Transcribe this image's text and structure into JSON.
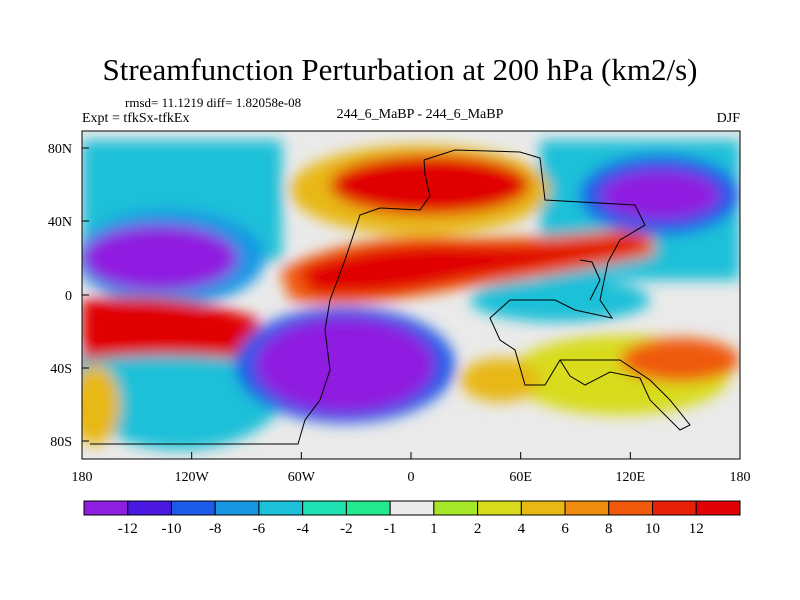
{
  "title": "Streamfunction Perturbation at 200 hPa (km2/s)",
  "stats": "rmsd= 11.1219 diff= 1.82058e-08",
  "experiment": "Expt = tfkSx-tfkEx",
  "case": "244_6_MaBP - 244_6_MaBP",
  "season": "DJF",
  "lat_ticks": [
    "80N",
    "40N",
    "0",
    "40S",
    "80S"
  ],
  "lon_ticks": [
    "180",
    "120W",
    "60W",
    "0",
    "60E",
    "120E",
    "180"
  ],
  "colorbar": {
    "labels": [
      "-12",
      "-10",
      "-8",
      "-6",
      "-4",
      "-2",
      "-1",
      "1",
      "2",
      "4",
      "6",
      "8",
      "10",
      "12"
    ],
    "colors": [
      "#8f1fe0",
      "#4a18e0",
      "#1c5ae8",
      "#1796e4",
      "#1cc0d8",
      "#1ee0b0",
      "#22e890",
      "#eaeaea",
      "#a6e628",
      "#d8dc1c",
      "#e8b814",
      "#f08c0e",
      "#f05a0a",
      "#e82008",
      "#e00006"
    ]
  }
}
